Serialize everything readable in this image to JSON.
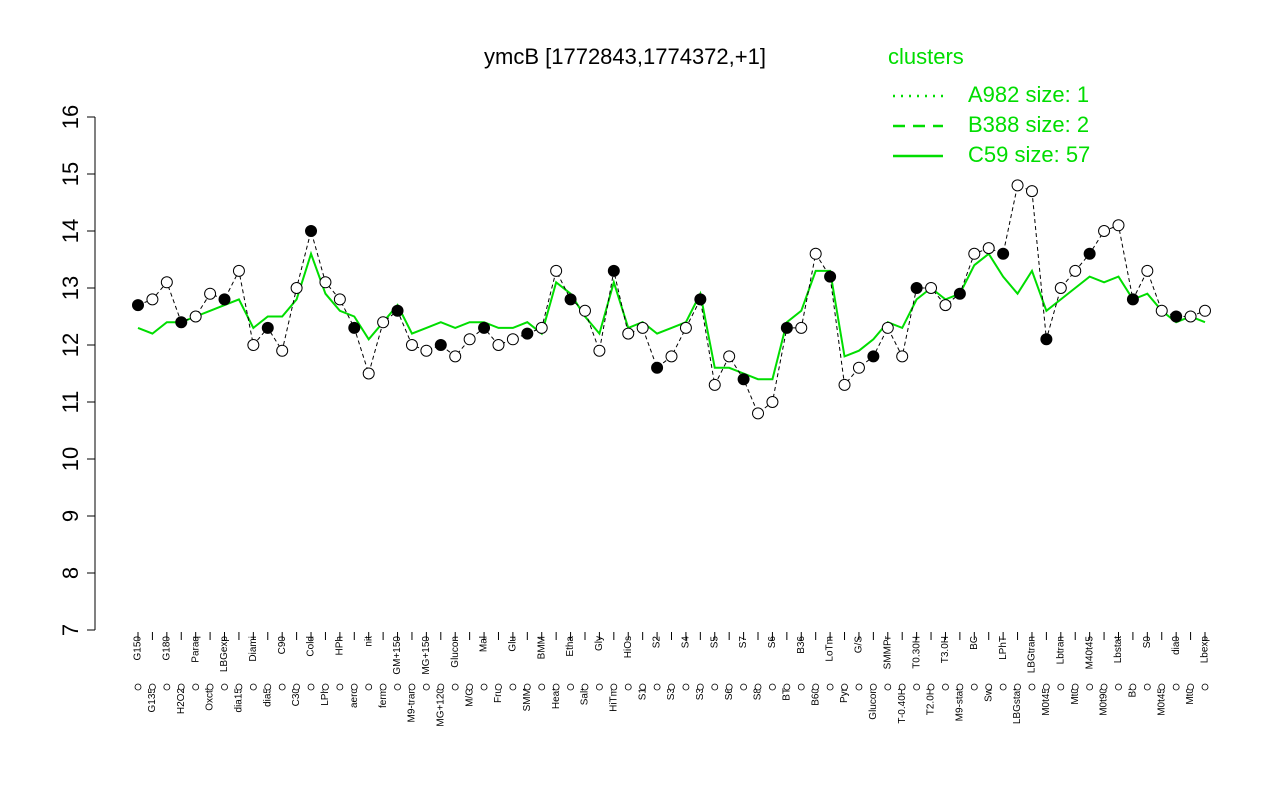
{
  "chart_data": {
    "type": "line",
    "title": "ymcB [1772843,1774372,+1]",
    "legend_title": "clusters",
    "categories": [
      "G150",
      "G135",
      "G180",
      "H2O2",
      "Paraq",
      "Oxctl",
      "LBGexp",
      "dia15",
      "Diami",
      "dia5",
      "C90",
      "C30",
      "Cold",
      "LPh",
      "HPh",
      "aero",
      "nit",
      "ferm",
      "GM+150",
      "M9-tran",
      "MG+150",
      "MG+120",
      "Glucon",
      "M/G",
      "Mal",
      "Fru",
      "Glu",
      "SMM",
      "BMM",
      "Heat",
      "Etha",
      "Salt",
      "Gly",
      "HiTm",
      "HiOs",
      "S1",
      "S2",
      "S3",
      "S4",
      "S3",
      "S5",
      "S6",
      "S7",
      "S8",
      "S6",
      "BT",
      "B36",
      "B60",
      "LoTm",
      "Pyr",
      "G/S",
      "Glucon",
      "SMMPr",
      "T-0.40H",
      "T0.30H",
      "T2.0H",
      "T3.0H",
      "M9-stat",
      "BC",
      "Sw",
      "LPhT",
      "LBGstat",
      "LBGtran",
      "M0t45",
      "Lbtran",
      "Mt0",
      "M40t45",
      "M0t90",
      "Lbstat",
      "BI",
      "S0",
      "M0t45",
      "dia0",
      "Mt0",
      "Lbexp"
    ],
    "values": [
      12.7,
      12.8,
      13.1,
      12.4,
      12.5,
      12.9,
      12.8,
      13.3,
      12.0,
      12.3,
      11.9,
      13.0,
      14.0,
      13.1,
      12.8,
      12.3,
      11.5,
      12.4,
      12.6,
      12.0,
      11.9,
      12.0,
      11.8,
      12.1,
      12.3,
      12.0,
      12.1,
      12.2,
      12.3,
      13.3,
      12.8,
      12.6,
      11.9,
      13.3,
      12.2,
      12.3,
      11.6,
      11.8,
      12.3,
      12.8,
      11.3,
      11.8,
      11.4,
      10.8,
      11.0,
      12.3,
      12.3,
      13.6,
      13.2,
      11.3,
      11.6,
      11.8,
      12.3,
      11.8,
      13.0,
      13.0,
      12.7,
      12.9,
      13.6,
      13.7,
      13.6,
      14.8,
      14.7,
      12.1,
      13.0,
      13.3,
      13.6,
      14.0,
      14.1,
      12.8,
      13.3,
      12.6,
      12.5,
      12.5,
      12.6
    ],
    "point_color": "#000000",
    "series": [
      {
        "name": "A982 size: 1",
        "color": "#00dd00",
        "dash": "dotted"
      },
      {
        "name": "B388 size: 2",
        "color": "#00dd00",
        "dash": "dashed"
      },
      {
        "name": "C59 size: 57",
        "color": "#00dd00",
        "dash": "solid",
        "values": [
          12.3,
          12.2,
          12.4,
          12.4,
          12.5,
          12.6,
          12.7,
          12.8,
          12.3,
          12.5,
          12.5,
          12.8,
          13.6,
          12.9,
          12.6,
          12.5,
          12.1,
          12.4,
          12.7,
          12.2,
          12.3,
          12.4,
          12.3,
          12.4,
          12.4,
          12.3,
          12.3,
          12.4,
          12.2,
          13.1,
          12.9,
          12.5,
          12.2,
          13.1,
          12.3,
          12.4,
          12.2,
          12.3,
          12.4,
          12.9,
          11.6,
          11.6,
          11.5,
          11.4,
          11.4,
          12.4,
          12.6,
          13.3,
          13.3,
          11.8,
          11.9,
          12.1,
          12.4,
          12.3,
          12.8,
          13.0,
          12.8,
          12.9,
          13.4,
          13.6,
          13.2,
          12.9,
          13.3,
          12.6,
          12.8,
          13.0,
          13.2,
          13.1,
          13.2,
          12.8,
          12.9,
          12.6,
          12.4,
          12.5,
          12.4
        ]
      }
    ],
    "ylim": [
      7,
      16
    ],
    "yticks": [
      7,
      8,
      9,
      10,
      11,
      12,
      13,
      14,
      15,
      16
    ]
  }
}
